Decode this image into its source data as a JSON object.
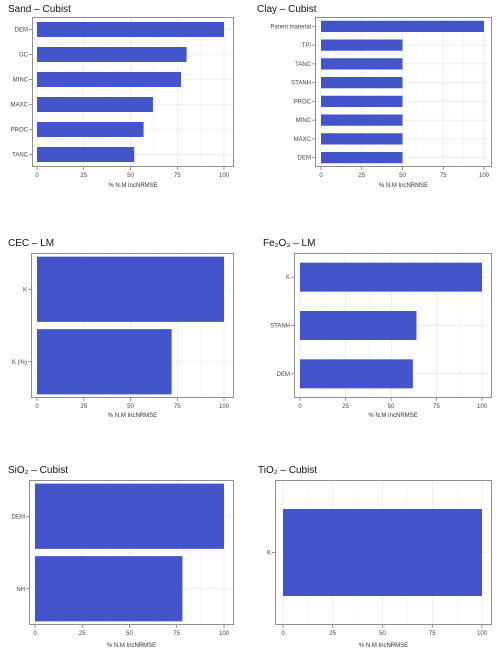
{
  "chart_data": [
    {
      "type": "bar",
      "orientation": "horizontal",
      "title": "Sand – Cubist",
      "xlabel": "% N.M IncNRMSE",
      "categories": [
        "DEM",
        "GC",
        "MINC",
        "MAXC",
        "PROC",
        "TANC"
      ],
      "values": [
        100,
        80,
        77,
        62,
        57,
        52
      ],
      "xlim": [
        0,
        100
      ],
      "xticks": [
        0,
        25,
        50,
        75,
        100
      ],
      "bar_color": "#4455cc",
      "grid": true
    },
    {
      "type": "bar",
      "orientation": "horizontal",
      "title": "Clay – Cubist",
      "xlabel": "% N.M IncNRMSE",
      "categories": [
        "Parent material",
        "TPI",
        "TANC",
        "STANH",
        "PROC",
        "MINC",
        "MAXC",
        "DEM"
      ],
      "values": [
        100,
        50,
        50,
        50,
        50,
        50,
        50,
        50
      ],
      "xlim": [
        0,
        100
      ],
      "xticks": [
        0,
        25,
        50,
        75,
        100
      ],
      "bar_color": "#4455cc",
      "grid": true
    },
    {
      "type": "bar",
      "orientation": "horizontal",
      "title": "CEC – LM",
      "xlabel": "% N.M IncNRMSE",
      "categories": [
        "K",
        "K (%)"
      ],
      "values": [
        100,
        72
      ],
      "xlim": [
        0,
        100
      ],
      "xticks": [
        0,
        25,
        50,
        75,
        100
      ],
      "bar_color": "#4455cc",
      "grid": true
    },
    {
      "type": "bar",
      "orientation": "horizontal",
      "title": "Fe₂O₃ – LM",
      "xlabel": "% N.M IncNRMSE",
      "categories": [
        "K",
        "STANH",
        "DEM"
      ],
      "values": [
        100,
        64,
        62
      ],
      "xlim": [
        0,
        100
      ],
      "xticks": [
        0,
        25,
        50,
        75,
        100
      ],
      "bar_color": "#4455cc",
      "grid": true
    },
    {
      "type": "bar",
      "orientation": "horizontal",
      "title": "SiO₂ – Cubist",
      "xlabel": "% N.M IncNRMSE",
      "categories": [
        "DEM",
        "NH"
      ],
      "values": [
        100,
        78
      ],
      "xlim": [
        0,
        100
      ],
      "xticks": [
        0,
        25,
        50,
        75,
        100
      ],
      "bar_color": "#4455cc",
      "grid": true
    },
    {
      "type": "bar",
      "orientation": "horizontal",
      "title": "TiO₂ – Cubist",
      "xlabel": "% N.M IncNRMSE",
      "categories": [
        "K"
      ],
      "values": [
        100
      ],
      "xlim": [
        0,
        100
      ],
      "xticks": [
        0,
        25,
        50,
        75,
        100
      ],
      "bar_color": "#4455cc",
      "grid": true
    }
  ]
}
